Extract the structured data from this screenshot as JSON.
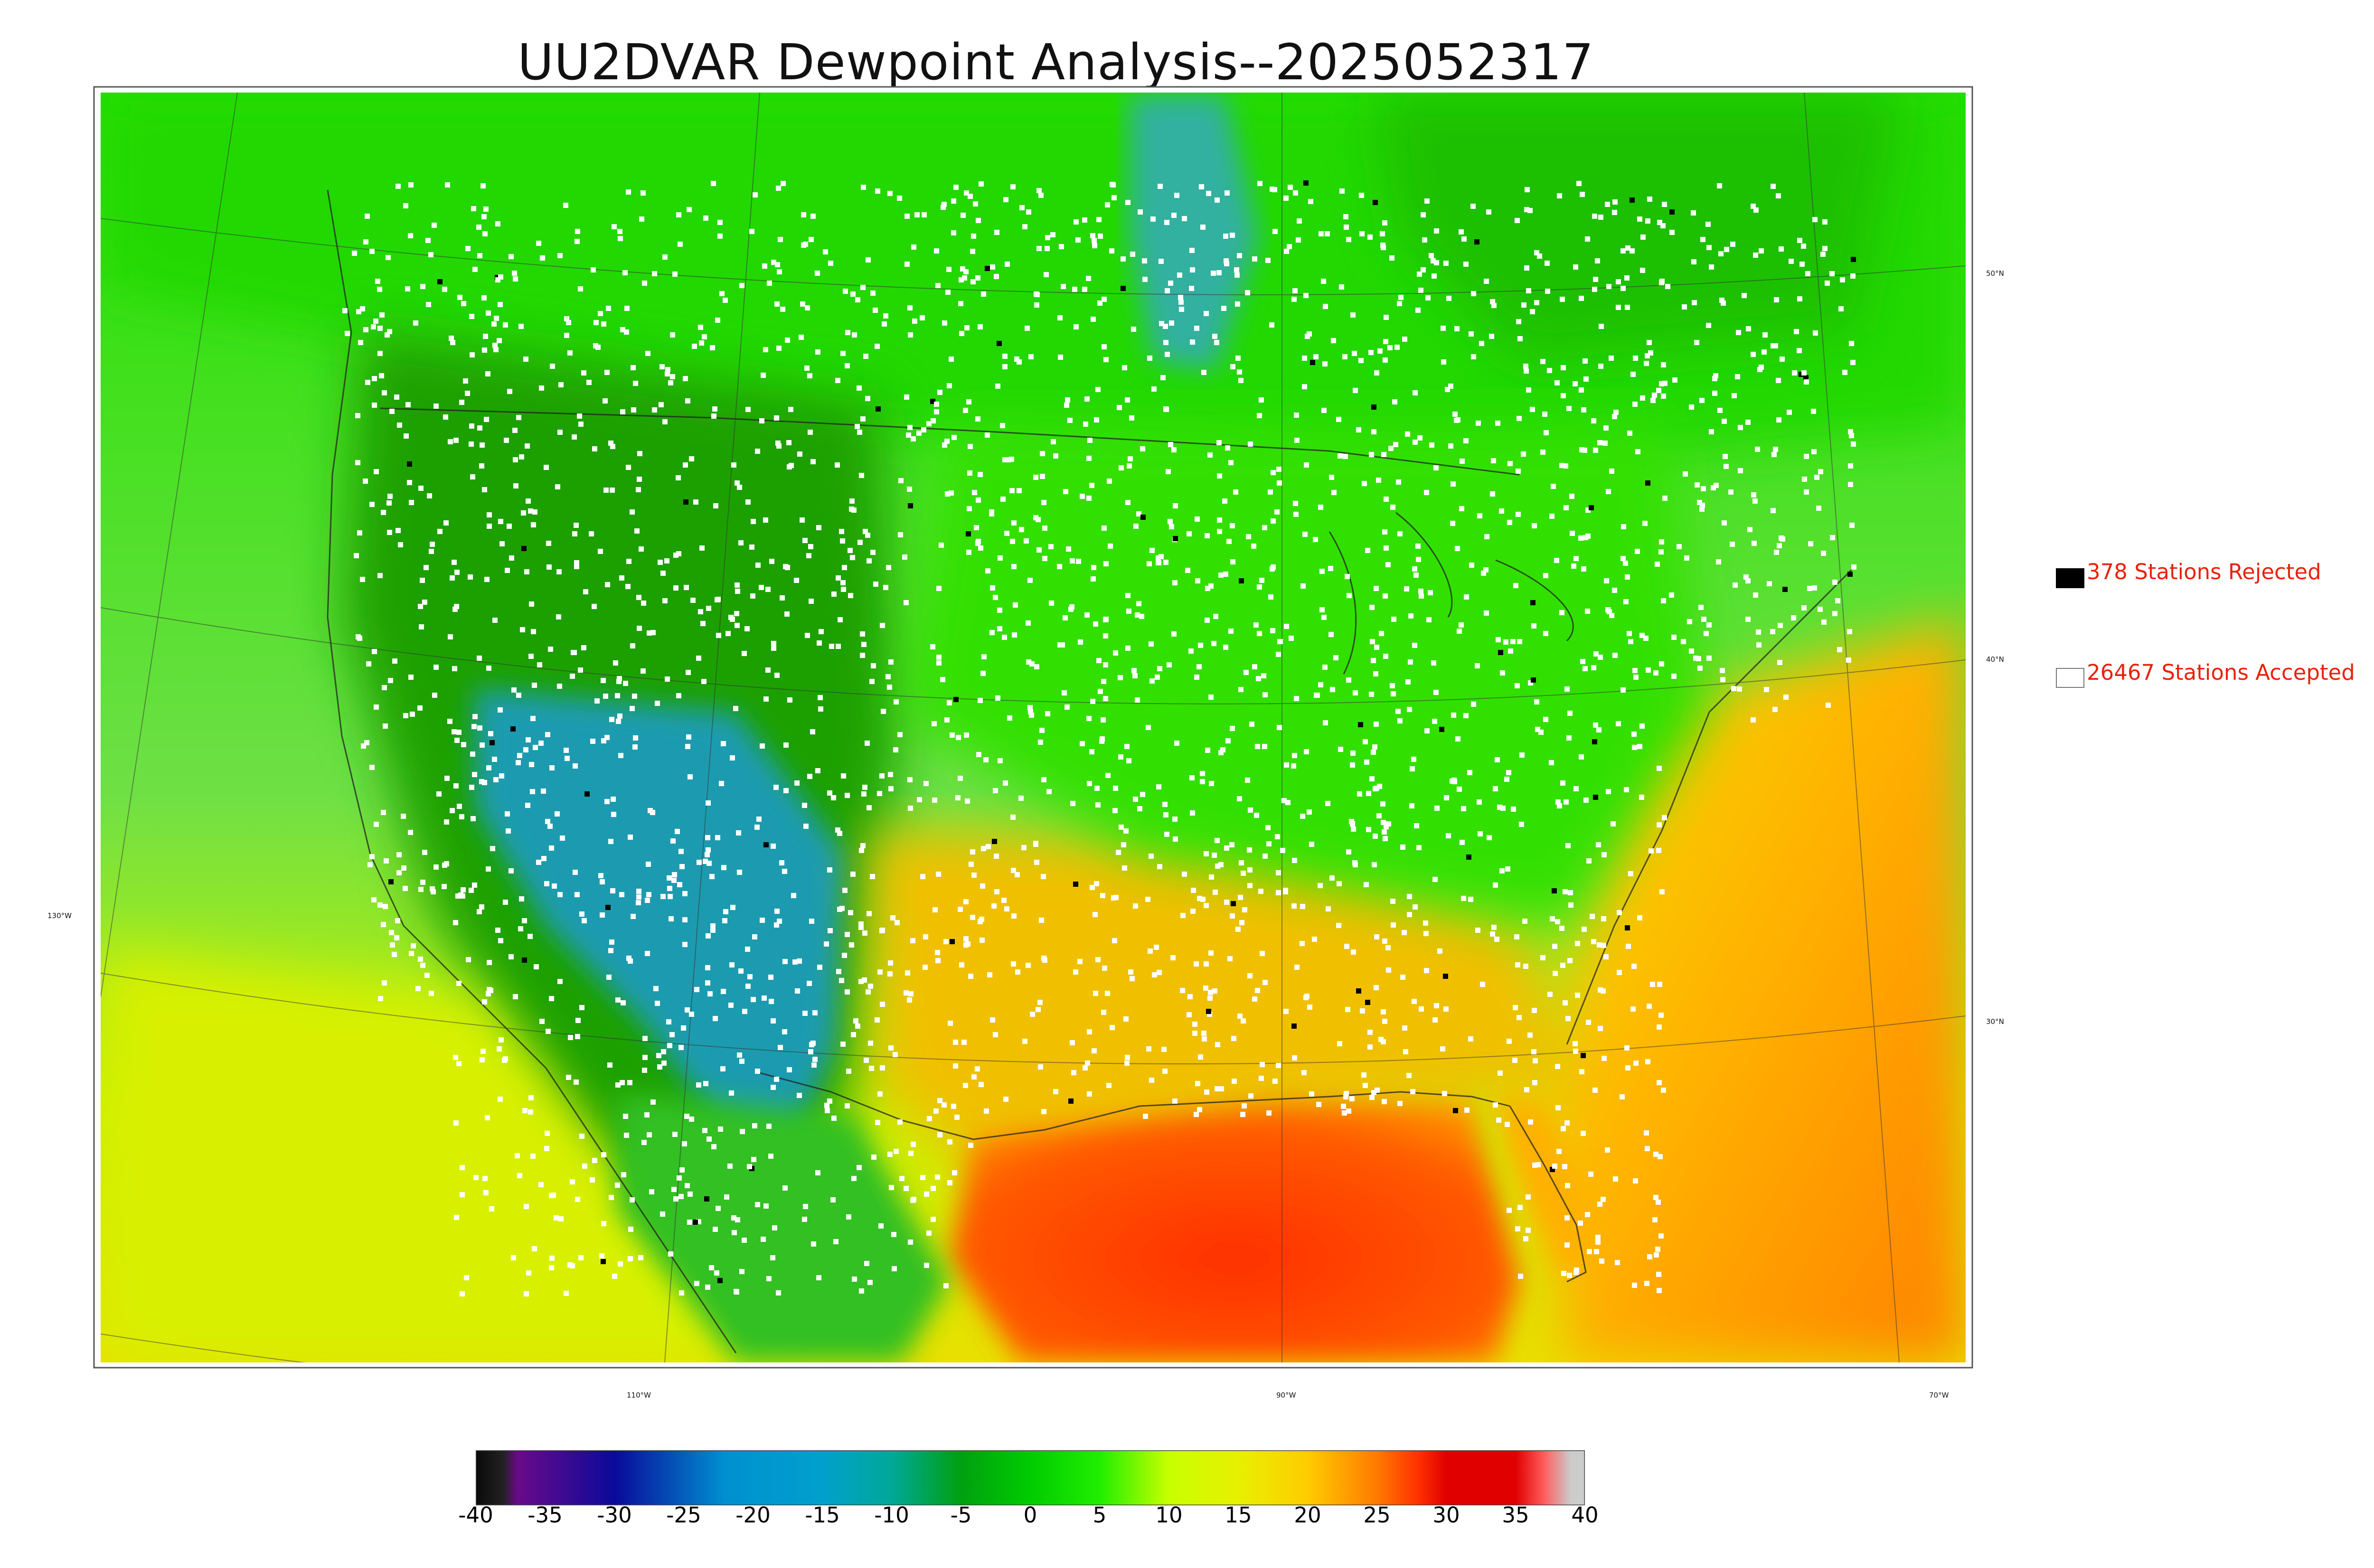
{
  "title": "UU2DVAR Dewpoint Analysis--2025052317",
  "legend": {
    "rejected_label": "378 Stations Rejected",
    "accepted_label": "26467 Stations Accepted",
    "rejected_color": "#000000",
    "accepted_color": "#ffffff",
    "text_color": "#e8220c"
  },
  "graticule": {
    "latitude_labels": [
      "50°N",
      "40°N",
      "30°N"
    ],
    "longitude_labels": [
      "130°W",
      "110°W",
      "90°W",
      "70°W"
    ]
  },
  "colorbar": {
    "min": -40,
    "max": 40,
    "tick_labels": [
      "-40",
      "-35",
      "-30",
      "-25",
      "-20",
      "-15",
      "-10",
      "-5",
      "0",
      "5",
      "10",
      "15",
      "20",
      "25",
      "30",
      "35",
      "40"
    ],
    "color_stops": [
      {
        "value": -40,
        "color": "#0a0a0a"
      },
      {
        "value": -38,
        "color": "#222222"
      },
      {
        "value": -37,
        "color": "#6a0a8a"
      },
      {
        "value": -30,
        "color": "#0a0a9a"
      },
      {
        "value": -22,
        "color": "#0090d0"
      },
      {
        "value": -15,
        "color": "#00a0cc"
      },
      {
        "value": -10,
        "color": "#00a898"
      },
      {
        "value": -5,
        "color": "#00a010"
      },
      {
        "value": 0,
        "color": "#00cc00"
      },
      {
        "value": 5,
        "color": "#20ee00"
      },
      {
        "value": 10,
        "color": "#c8ff00"
      },
      {
        "value": 15,
        "color": "#e8f000"
      },
      {
        "value": 20,
        "color": "#ffcc00"
      },
      {
        "value": 25,
        "color": "#ff7a00"
      },
      {
        "value": 28,
        "color": "#ff3000"
      },
      {
        "value": 30,
        "color": "#e00000"
      },
      {
        "value": 35,
        "color": "#e00000"
      },
      {
        "value": 37,
        "color": "#ff5a5a"
      },
      {
        "value": 39,
        "color": "#cccccc"
      }
    ]
  },
  "regions": {
    "colors": {
      "pacific": "#6ee045",
      "southwest_ocean": "#d8f000",
      "canada": "#20d800",
      "hudson": "#1fc000",
      "plains": "#1aa000",
      "dry_core": "#1f9bb0",
      "southeast": "#f0c800",
      "gulf": "#ff4a00",
      "atlantic": "#ffa000",
      "east": "#33e000",
      "florida": "#ffb000"
    }
  }
}
